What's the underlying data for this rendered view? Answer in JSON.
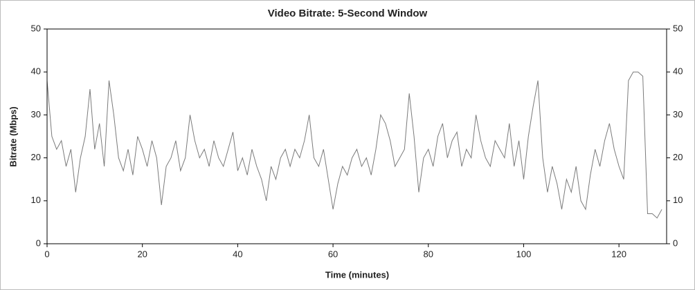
{
  "chart_data": {
    "type": "line",
    "title": "Video Bitrate: 5-Second Window",
    "xlabel": "Time (minutes)",
    "ylabel": "Bitrate (Mbps)",
    "x": [
      0,
      1,
      2,
      3,
      4,
      5,
      6,
      7,
      8,
      9,
      10,
      11,
      12,
      13,
      14,
      15,
      16,
      17,
      18,
      19,
      20,
      21,
      22,
      23,
      24,
      25,
      26,
      27,
      28,
      29,
      30,
      31,
      32,
      33,
      34,
      35,
      36,
      37,
      38,
      39,
      40,
      41,
      42,
      43,
      44,
      45,
      46,
      47,
      48,
      49,
      50,
      51,
      52,
      53,
      54,
      55,
      56,
      57,
      58,
      59,
      60,
      61,
      62,
      63,
      64,
      65,
      66,
      67,
      68,
      69,
      70,
      71,
      72,
      73,
      74,
      75,
      76,
      77,
      78,
      79,
      80,
      81,
      82,
      83,
      84,
      85,
      86,
      87,
      88,
      89,
      90,
      91,
      92,
      93,
      94,
      95,
      96,
      97,
      98,
      99,
      100,
      101,
      102,
      103,
      104,
      105,
      106,
      107,
      108,
      109,
      110,
      111,
      112,
      113,
      114,
      115,
      116,
      117,
      118,
      119,
      120,
      121,
      122,
      123,
      124,
      125,
      126,
      127,
      128,
      129
    ],
    "series": [
      {
        "name": "Video Bitrate",
        "color": "#7a7a7a",
        "values": [
          38,
          25,
          22,
          24,
          18,
          22,
          12,
          20,
          25,
          36,
          22,
          28,
          18,
          38,
          30,
          20,
          17,
          22,
          16,
          25,
          22,
          18,
          24,
          20,
          9,
          18,
          20,
          24,
          17,
          20,
          30,
          24,
          20,
          22,
          18,
          24,
          20,
          18,
          22,
          26,
          17,
          20,
          16,
          22,
          18,
          15,
          10,
          18,
          15,
          20,
          22,
          18,
          22,
          20,
          24,
          30,
          20,
          18,
          22,
          15,
          8,
          14,
          18,
          16,
          20,
          22,
          18,
          20,
          16,
          22,
          30,
          28,
          24,
          18,
          20,
          22,
          35,
          25,
          12,
          20,
          22,
          18,
          25,
          28,
          20,
          24,
          26,
          18,
          22,
          20,
          30,
          24,
          20,
          18,
          24,
          22,
          20,
          28,
          18,
          24,
          15,
          25,
          32,
          38,
          20,
          12,
          18,
          14,
          8,
          15,
          12,
          18,
          10,
          8,
          16,
          22,
          18,
          24,
          28,
          22,
          18,
          15,
          38,
          40,
          40,
          39,
          7,
          7,
          6,
          8
        ]
      }
    ],
    "xlim": [
      0,
      130
    ],
    "xticks": [
      0,
      20,
      40,
      60,
      80,
      100,
      120
    ],
    "ylim": [
      0,
      50
    ],
    "yticks": [
      0,
      10,
      20,
      30,
      40,
      50
    ],
    "y2lim": [
      0,
      50
    ],
    "y2ticks": [
      0,
      10,
      20,
      30,
      40,
      50
    ]
  }
}
